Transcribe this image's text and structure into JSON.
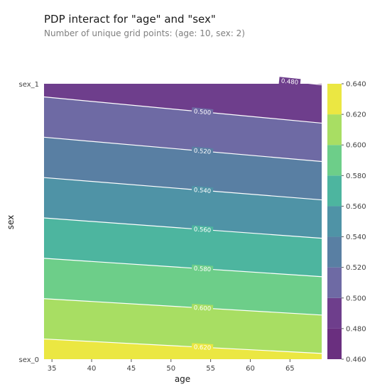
{
  "title": "PDP interact for \"age\" and \"sex\"",
  "subtitle": "Number of unique grid points: (age: 10, sex: 2)",
  "chart_data": {
    "type": "heatmap",
    "xlabel": "age",
    "ylabel": "sex",
    "xlim": [
      34,
      69
    ],
    "x_ticks": [
      35,
      40,
      45,
      50,
      55,
      60,
      65
    ],
    "y_categories": [
      "sex_0",
      "sex_1"
    ],
    "z": {
      "sex_0": {
        "age_34": 0.63,
        "age_69": 0.623
      },
      "sex_1": {
        "age_34": 0.4935,
        "age_69": 0.4795
      }
    },
    "levels": [
      0.46,
      0.48,
      0.5,
      0.52,
      0.54,
      0.56,
      0.58,
      0.6,
      0.62,
      0.64
    ],
    "level_colors": [
      "#6a2f7f",
      "#6e3e8c",
      "#6e6aa4",
      "#597fa3",
      "#4f93a6",
      "#4db59f",
      "#6dce89",
      "#a8de63",
      "#ebe742"
    ],
    "contour_lines": [
      0.48,
      0.5,
      0.52,
      0.54,
      0.56,
      0.58,
      0.6,
      0.62
    ],
    "contour_labels": [
      {
        "value": 0.48,
        "text": "0.480"
      },
      {
        "value": 0.5,
        "text": "0.500"
      },
      {
        "value": 0.52,
        "text": "0.520"
      },
      {
        "value": 0.54,
        "text": "0.540"
      },
      {
        "value": 0.56,
        "text": "0.560"
      },
      {
        "value": 0.58,
        "text": "0.580"
      },
      {
        "value": 0.6,
        "text": "0.600"
      },
      {
        "value": 0.62,
        "text": "0.620"
      }
    ],
    "colorbar_ticks": [
      "0.460",
      "0.480",
      "0.500",
      "0.520",
      "0.540",
      "0.560",
      "0.580",
      "0.600",
      "0.620",
      "0.640"
    ],
    "grid": false,
    "legend": "colorbar-right"
  }
}
